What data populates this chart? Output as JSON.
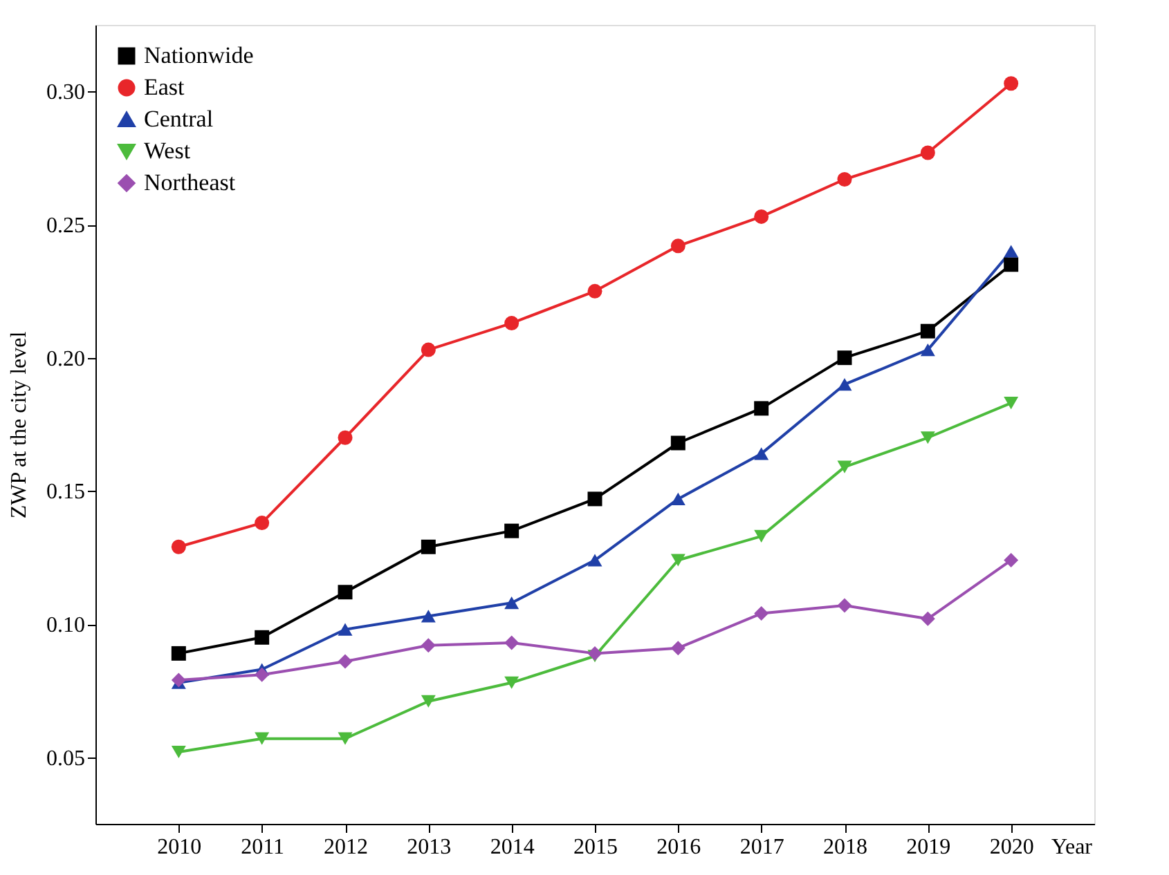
{
  "chart_data": {
    "type": "line",
    "xlabel": "Year",
    "ylabel": "ZWP at the city level",
    "x": [
      2010,
      2011,
      2012,
      2013,
      2014,
      2015,
      2016,
      2017,
      2018,
      2019,
      2020
    ],
    "xlim": [
      2009,
      2021
    ],
    "xticks": [
      2010,
      2011,
      2012,
      2013,
      2014,
      2015,
      2016,
      2017,
      2018,
      2019,
      2020
    ],
    "ylim": [
      0.025,
      0.325
    ],
    "yticks": [
      {
        "value": 0.05,
        "label": "0.05"
      },
      {
        "value": 0.1,
        "label": "0.10"
      },
      {
        "value": 0.15,
        "label": "0.15"
      },
      {
        "value": 0.2,
        "label": "0.20"
      },
      {
        "value": 0.25,
        "label": "0.25"
      },
      {
        "value": 0.3,
        "label": "0.30"
      }
    ],
    "grid": false,
    "legend": "top left",
    "line_style": "solid",
    "series": [
      {
        "name": "Nationwide",
        "color": "#000000",
        "marker": "square",
        "values": [
          0.089,
          0.095,
          0.112,
          0.129,
          0.135,
          0.147,
          0.168,
          0.181,
          0.2,
          0.21,
          0.235
        ]
      },
      {
        "name": "East",
        "color": "#e8262a",
        "marker": "circle",
        "values": [
          0.129,
          0.138,
          0.17,
          0.203,
          0.213,
          0.225,
          0.242,
          0.253,
          0.267,
          0.277,
          0.303
        ]
      },
      {
        "name": "Central",
        "color": "#2040a8",
        "marker": "triangle",
        "values": [
          0.078,
          0.083,
          0.098,
          0.103,
          0.108,
          0.124,
          0.147,
          0.164,
          0.19,
          0.203,
          0.24
        ]
      },
      {
        "name": "West",
        "color": "#4cbb3c",
        "marker": "triangle-down",
        "values": [
          0.052,
          0.057,
          0.057,
          0.071,
          0.078,
          0.088,
          0.124,
          0.133,
          0.159,
          0.17,
          0.183
        ]
      },
      {
        "name": "Northeast",
        "color": "#9b4fb0",
        "marker": "diamond",
        "values": [
          0.079,
          0.081,
          0.086,
          0.092,
          0.093,
          0.089,
          0.091,
          0.104,
          0.107,
          0.102,
          0.124
        ]
      }
    ]
  }
}
